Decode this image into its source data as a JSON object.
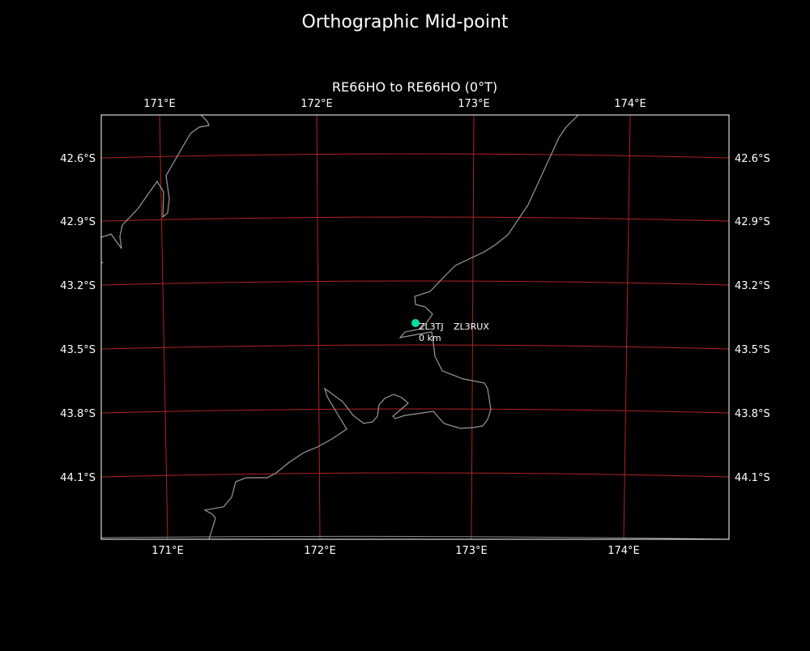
{
  "figure": {
    "title": "Orthographic Mid-point"
  },
  "map": {
    "subtitle": "RE66HO to RE66HO (0°T)",
    "colors": {
      "background": "#000000",
      "grid": "#b22222",
      "coastline": "#999999",
      "frame": "#ffffff",
      "marker": "#00e0a0"
    },
    "lon_labels": [
      "171°E",
      "172°E",
      "173°E",
      "174°E"
    ],
    "lat_labels": [
      "42.6°S",
      "42.9°S",
      "43.2°S",
      "43.5°S",
      "43.8°S",
      "44.1°S"
    ],
    "marker": {
      "label_1": "ZL3TJ",
      "label_2": "ZL3RUX",
      "distance": "0 km",
      "icon": "circle-marker"
    }
  }
}
